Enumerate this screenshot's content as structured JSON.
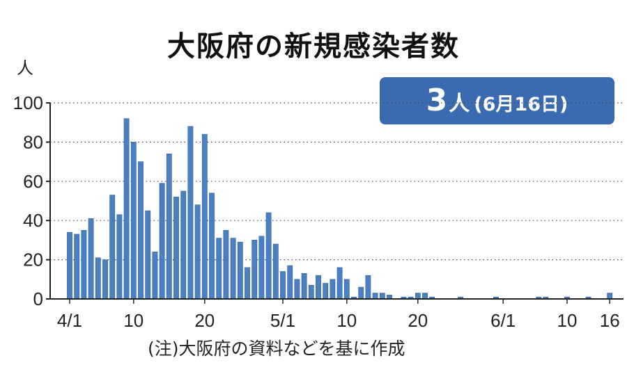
{
  "title": "大阪府の新規感染者数",
  "badge": {
    "value": "3",
    "unit": "人",
    "date": "(6月16日)"
  },
  "note": "(注)大阪府の資料などを基に作成",
  "colors": {
    "bar": "#4a7fc1",
    "bar_edge": "#2e5f9e",
    "badge": "#3a6bb0",
    "axis": "#222222"
  },
  "chart_data": {
    "type": "bar",
    "y_unit_label": "人",
    "ylim": [
      0,
      100
    ],
    "yticks": [
      0,
      20,
      40,
      60,
      80,
      100
    ],
    "x_start": "4/1",
    "x_end": "6/16",
    "x_tick_labels": [
      "4/1",
      "10",
      "20",
      "5/1",
      "10",
      "20",
      "6/1",
      "10",
      "16"
    ],
    "x_tick_days": [
      1,
      10,
      20,
      31,
      40,
      50,
      62,
      71,
      77
    ],
    "days": [
      1,
      2,
      3,
      4,
      5,
      6,
      7,
      8,
      9,
      10,
      11,
      12,
      13,
      14,
      15,
      16,
      17,
      18,
      19,
      20,
      21,
      22,
      23,
      24,
      25,
      26,
      27,
      28,
      29,
      30,
      31,
      32,
      33,
      34,
      35,
      36,
      37,
      38,
      39,
      40,
      41,
      42,
      43,
      44,
      45,
      46,
      47,
      48,
      49,
      50,
      51,
      52,
      53,
      54,
      55,
      56,
      57,
      58,
      59,
      60,
      61,
      62,
      63,
      64,
      65,
      66,
      67,
      68,
      69,
      70,
      71,
      72,
      73,
      74,
      75,
      76,
      77
    ],
    "values": [
      34,
      33,
      35,
      41,
      21,
      20,
      53,
      43,
      92,
      80,
      70,
      45,
      24,
      59,
      74,
      52,
      55,
      88,
      48,
      84,
      54,
      31,
      35,
      31,
      29,
      16,
      30,
      32,
      44,
      28,
      14,
      17,
      10,
      13,
      7,
      12,
      8,
      10,
      16,
      10,
      1,
      6,
      12,
      3,
      3,
      2,
      0,
      1,
      1,
      3,
      3,
      1,
      0,
      0,
      0,
      1,
      0,
      0,
      0,
      0,
      1,
      0,
      0,
      0,
      0,
      0,
      1,
      1,
      0,
      0,
      1,
      0,
      0,
      1,
      0,
      0,
      3
    ]
  }
}
